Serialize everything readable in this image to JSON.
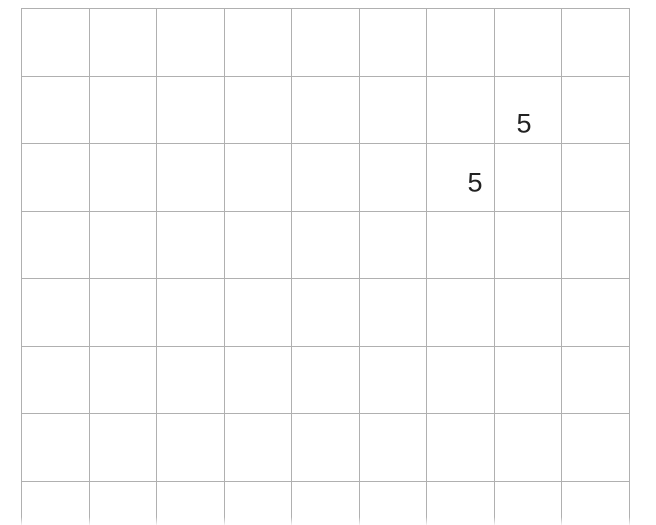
{
  "page": {
    "background": "#ffffff"
  },
  "grid": {
    "columns": 9,
    "rows": 8,
    "visible_full_rows": 7,
    "line_color": "#b0b0b0",
    "paper_color": "#ffffff",
    "note": "square grid, bottom row cropped by image edge"
  },
  "entries": [
    {
      "value": "5",
      "row": 2,
      "col": 8
    },
    {
      "value": "5",
      "row": 3,
      "col": 7
    }
  ],
  "ink_color": "#222222"
}
